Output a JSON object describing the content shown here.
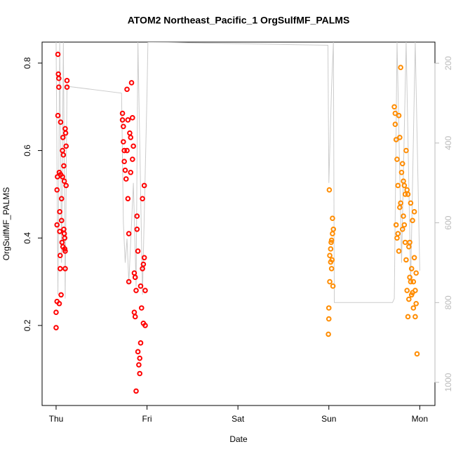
{
  "chart_data": {
    "type": "scatter",
    "title": "ATOM2 Northeast_Pacific_1 OrgSulfMF_PALMS",
    "x_label": "Date",
    "y_label": "OrgSulfMF_PALMS",
    "xlim": [
      -0.154,
      4.167
    ],
    "xticks": [
      {
        "value": 0,
        "label": "Thu"
      },
      {
        "value": 1,
        "label": "Fri"
      },
      {
        "value": 2,
        "label": "Sat"
      },
      {
        "value": 3,
        "label": "Sun"
      },
      {
        "value": 4,
        "label": "Mon"
      }
    ],
    "ylim": [
      0.017,
      0.848
    ],
    "yticks": [
      0.2,
      0.4,
      0.6,
      0.8
    ],
    "y2lim": [
      1058,
      147
    ],
    "y2ticks": [
      200,
      400,
      600,
      800,
      1000
    ],
    "y2_color": "#bbbbbb",
    "grid": false,
    "series": [
      {
        "color": "#ff0000",
        "marker": "circle",
        "x": [
          0.0,
          0.0,
          0.01,
          0.01,
          0.01,
          0.015,
          0.02,
          0.02,
          0.025,
          0.03,
          0.03,
          0.035,
          0.04,
          0.04,
          0.045,
          0.05,
          0.05,
          0.055,
          0.06,
          0.06,
          0.065,
          0.07,
          0.07,
          0.075,
          0.08,
          0.085,
          0.09,
          0.09,
          0.095,
          0.1,
          0.1,
          0.105,
          0.11,
          0.11,
          0.12,
          0.12,
          0.035,
          0.045,
          0.075,
          0.085,
          0.095,
          0.1,
          0.73,
          0.73,
          0.74,
          0.74,
          0.75,
          0.75,
          0.76,
          0.77,
          0.78,
          0.79,
          0.79,
          0.8,
          0.8,
          0.81,
          0.82,
          0.83,
          0.84,
          0.85,
          0.86,
          0.86,
          0.87,
          0.88,
          0.88,
          0.89,
          0.9,
          0.9,
          0.91,
          0.92,
          0.93,
          0.94,
          0.95,
          0.96,
          0.97,
          0.97,
          0.98,
          0.98,
          0.78,
          0.82,
          0.84,
          0.87,
          0.89,
          0.92,
          0.93,
          0.95,
          0.96
        ],
        "values": [
          0.195,
          0.23,
          0.255,
          0.43,
          0.51,
          0.54,
          0.68,
          0.82,
          0.775,
          0.765,
          0.745,
          0.55,
          0.46,
          0.415,
          0.36,
          0.665,
          0.545,
          0.27,
          0.49,
          0.44,
          0.39,
          0.6,
          0.54,
          0.63,
          0.59,
          0.565,
          0.53,
          0.41,
          0.375,
          0.33,
          0.65,
          0.64,
          0.61,
          0.52,
          0.76,
          0.745,
          0.25,
          0.33,
          0.38,
          0.42,
          0.4,
          0.37,
          0.685,
          0.67,
          0.655,
          0.62,
          0.6,
          0.575,
          0.555,
          0.535,
          0.74,
          0.67,
          0.49,
          0.41,
          0.3,
          0.64,
          0.63,
          0.755,
          0.675,
          0.61,
          0.32,
          0.23,
          0.22,
          0.05,
          0.28,
          0.45,
          0.37,
          0.14,
          0.11,
          0.125,
          0.29,
          0.24,
          0.33,
          0.205,
          0.52,
          0.355,
          0.2,
          0.28,
          0.6,
          0.55,
          0.58,
          0.31,
          0.42,
          0.09,
          0.16,
          0.49,
          0.34
        ]
      },
      {
        "color": "#ff8c00",
        "marker": "circle",
        "x": [
          2.995,
          3.0,
          3.0,
          3.005,
          3.01,
          3.02,
          3.02,
          3.03,
          3.03,
          3.04,
          3.04,
          3.05,
          3.045,
          3.01,
          3.025,
          3.035,
          3.72,
          3.73,
          3.73,
          3.74,
          3.75,
          3.76,
          3.77,
          3.78,
          3.78,
          3.79,
          3.8,
          3.81,
          3.82,
          3.82,
          3.83,
          3.84,
          3.84,
          3.85,
          3.86,
          3.86,
          3.87,
          3.88,
          3.88,
          3.89,
          3.9,
          3.9,
          3.91,
          3.92,
          3.92,
          3.93,
          3.94,
          3.95,
          3.96,
          3.97,
          3.96,
          3.74,
          3.76,
          3.79,
          3.81,
          3.83,
          3.85,
          3.87,
          3.89,
          3.91,
          3.93,
          3.95,
          3.94,
          3.75,
          3.77
        ],
        "values": [
          0.18,
          0.215,
          0.24,
          0.51,
          0.3,
          0.345,
          0.375,
          0.33,
          0.395,
          0.41,
          0.445,
          0.42,
          0.29,
          0.36,
          0.39,
          0.35,
          0.7,
          0.685,
          0.66,
          0.625,
          0.58,
          0.52,
          0.68,
          0.63,
          0.47,
          0.79,
          0.55,
          0.57,
          0.53,
          0.45,
          0.43,
          0.5,
          0.39,
          0.6,
          0.51,
          0.28,
          0.22,
          0.38,
          0.26,
          0.31,
          0.48,
          0.3,
          0.33,
          0.44,
          0.275,
          0.24,
          0.355,
          0.22,
          0.25,
          0.135,
          0.32,
          0.43,
          0.41,
          0.48,
          0.42,
          0.52,
          0.35,
          0.5,
          0.39,
          0.27,
          0.3,
          0.28,
          0.46,
          0.4,
          0.37
        ]
      },
      {
        "color": "#cccccc",
        "marker": "line",
        "axis": "y2",
        "x": [
          0.0,
          0.02,
          0.04,
          0.06,
          0.08,
          0.1,
          0.12,
          0.13,
          0.72,
          0.74,
          0.76,
          0.78,
          0.8,
          0.85,
          0.88,
          0.9,
          0.95,
          1.0,
          1.01,
          2.99,
          3.0,
          3.03,
          3.05,
          3.06,
          3.7,
          3.72,
          3.75,
          3.8,
          3.85,
          3.9,
          3.95,
          4.0
        ],
        "values": [
          147,
          780,
          147,
          700,
          147,
          790,
          255,
          258,
          275,
          600,
          700,
          640,
          750,
          500,
          760,
          147,
          780,
          275,
          147,
          155,
          500,
          260,
          147,
          800,
          800,
          790,
          147,
          700,
          147,
          750,
          147,
          720
        ]
      }
    ]
  }
}
